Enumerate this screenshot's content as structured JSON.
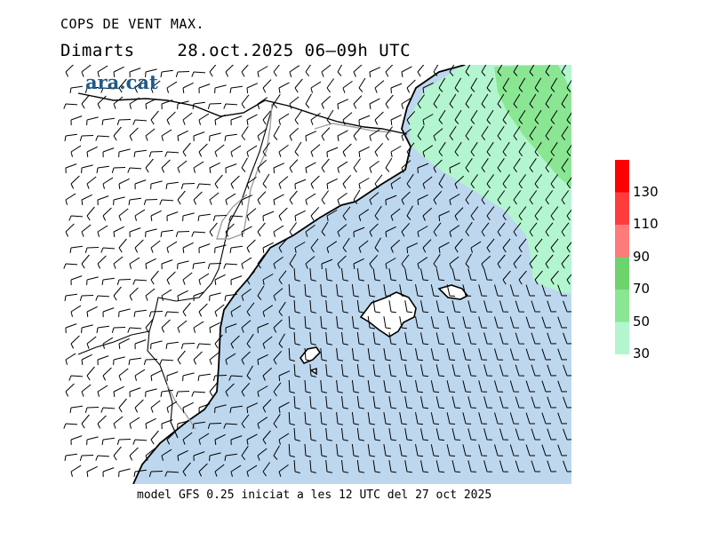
{
  "header": {
    "title": "COPS DE VENT MAX.",
    "day": "Dimarts",
    "date": "28.oct.2025",
    "period": "06–09h UTC"
  },
  "logo": {
    "text": "ara.cat",
    "color": "#1f5a8a"
  },
  "footer": {
    "model_info": "model GFS 0.25 iniciat a les 12 UTC del 27 oct 2025"
  },
  "legend": {
    "units": "",
    "bins": [
      {
        "from": 30,
        "to": 50,
        "color": "#b3f5cf"
      },
      {
        "from": 50,
        "to": 70,
        "color": "#8ae693"
      },
      {
        "from": 70,
        "to": 90,
        "color": "#6dd36c"
      },
      {
        "from": 90,
        "to": 110,
        "color": "#ff7a7a"
      },
      {
        "from": 110,
        "to": 130,
        "color": "#ff3c3c"
      },
      {
        "from": 130,
        "to": 150,
        "color": "#ff0000"
      }
    ],
    "labels": [
      "30",
      "50",
      "70",
      "90",
      "110",
      "130"
    ]
  },
  "colors": {
    "sea": "#bdd7ee",
    "land": "#ffffff",
    "coast": "#000000",
    "borders": "#000000",
    "region_borders": "#a0a0a0",
    "barbs": "#000000"
  }
}
